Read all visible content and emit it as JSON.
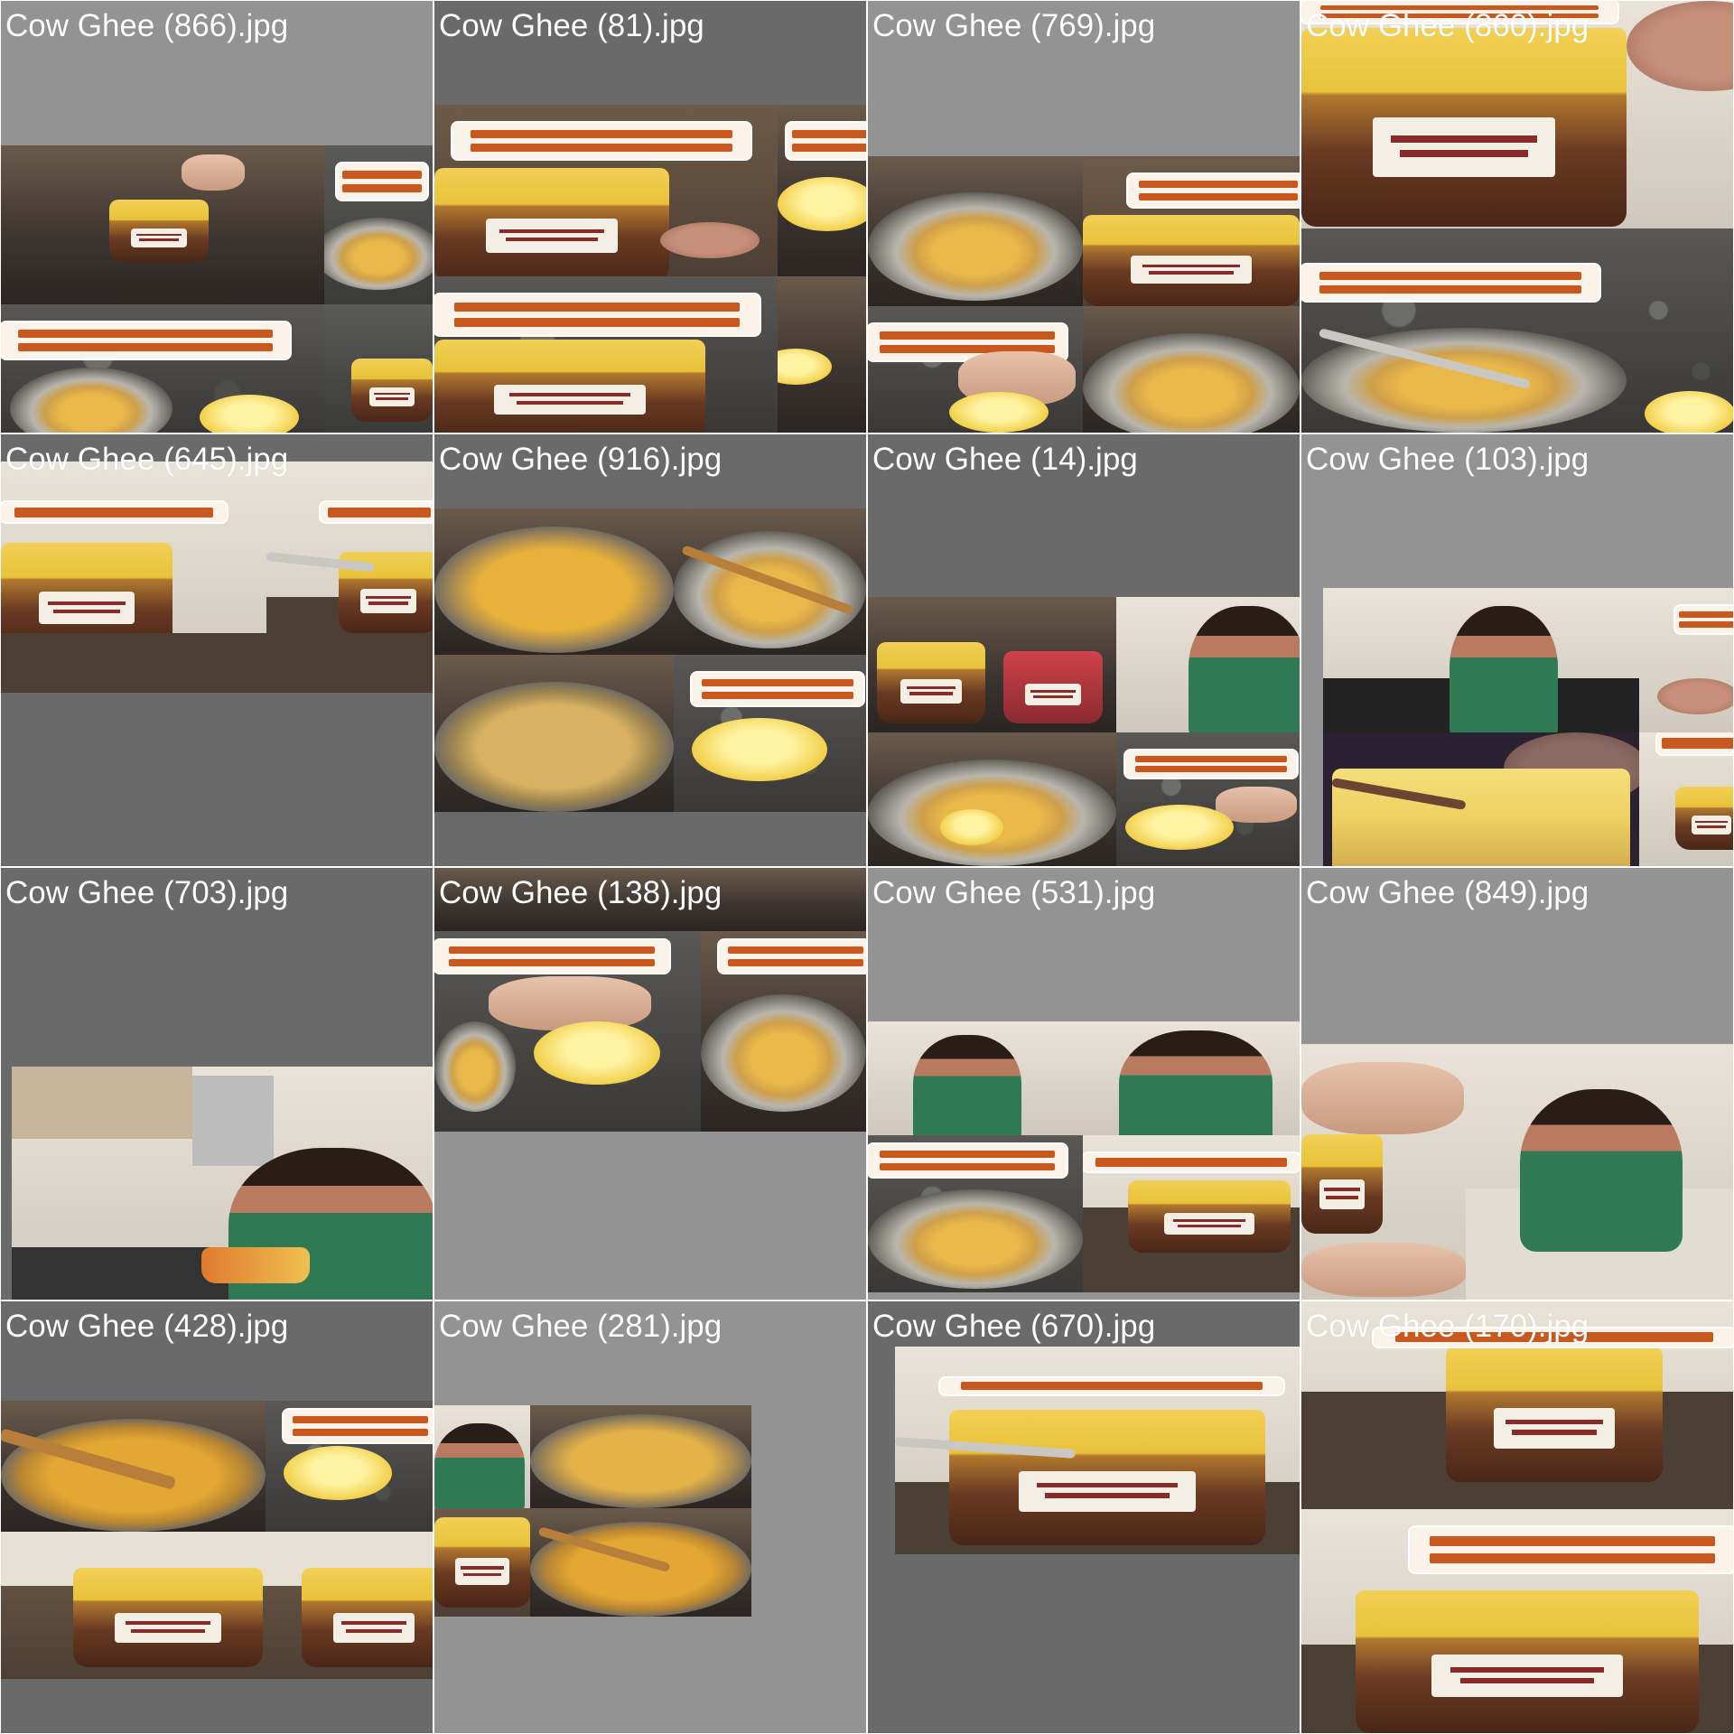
{
  "window": {
    "title": ""
  },
  "thumbnails": [
    {
      "label": "Cow Ghee (866).jpg",
      "bg": "#939393"
    },
    {
      "label": "Cow Ghee (81).jpg",
      "bg": "#6a6a6a"
    },
    {
      "label": "Cow Ghee (769).jpg",
      "bg": "#939393"
    },
    {
      "label": "Cow Ghee (860).jpg",
      "bg": "#939393"
    },
    {
      "label": "Cow Ghee (645).jpg",
      "bg": "#6a6a6a"
    },
    {
      "label": "Cow Ghee (916).jpg",
      "bg": "#6a6a6a"
    },
    {
      "label": "Cow Ghee (14).jpg",
      "bg": "#6a6a6a"
    },
    {
      "label": "Cow Ghee (103).jpg",
      "bg": "#939393"
    },
    {
      "label": "Cow Ghee (703).jpg",
      "bg": "#6a6a6a"
    },
    {
      "label": "Cow Ghee (138).jpg",
      "bg": "#939393"
    },
    {
      "label": "Cow Ghee (531).jpg",
      "bg": "#939393"
    },
    {
      "label": "Cow Ghee (849).jpg",
      "bg": "#939393"
    },
    {
      "label": "Cow Ghee (428).jpg",
      "bg": "#6a6a6a"
    },
    {
      "label": "Cow Ghee (281).jpg",
      "bg": "#939393"
    },
    {
      "label": "Cow Ghee (670).jpg",
      "bg": "#6a6a6a"
    },
    {
      "label": "Cow Ghee (170).jpg",
      "bg": "#939393"
    }
  ]
}
